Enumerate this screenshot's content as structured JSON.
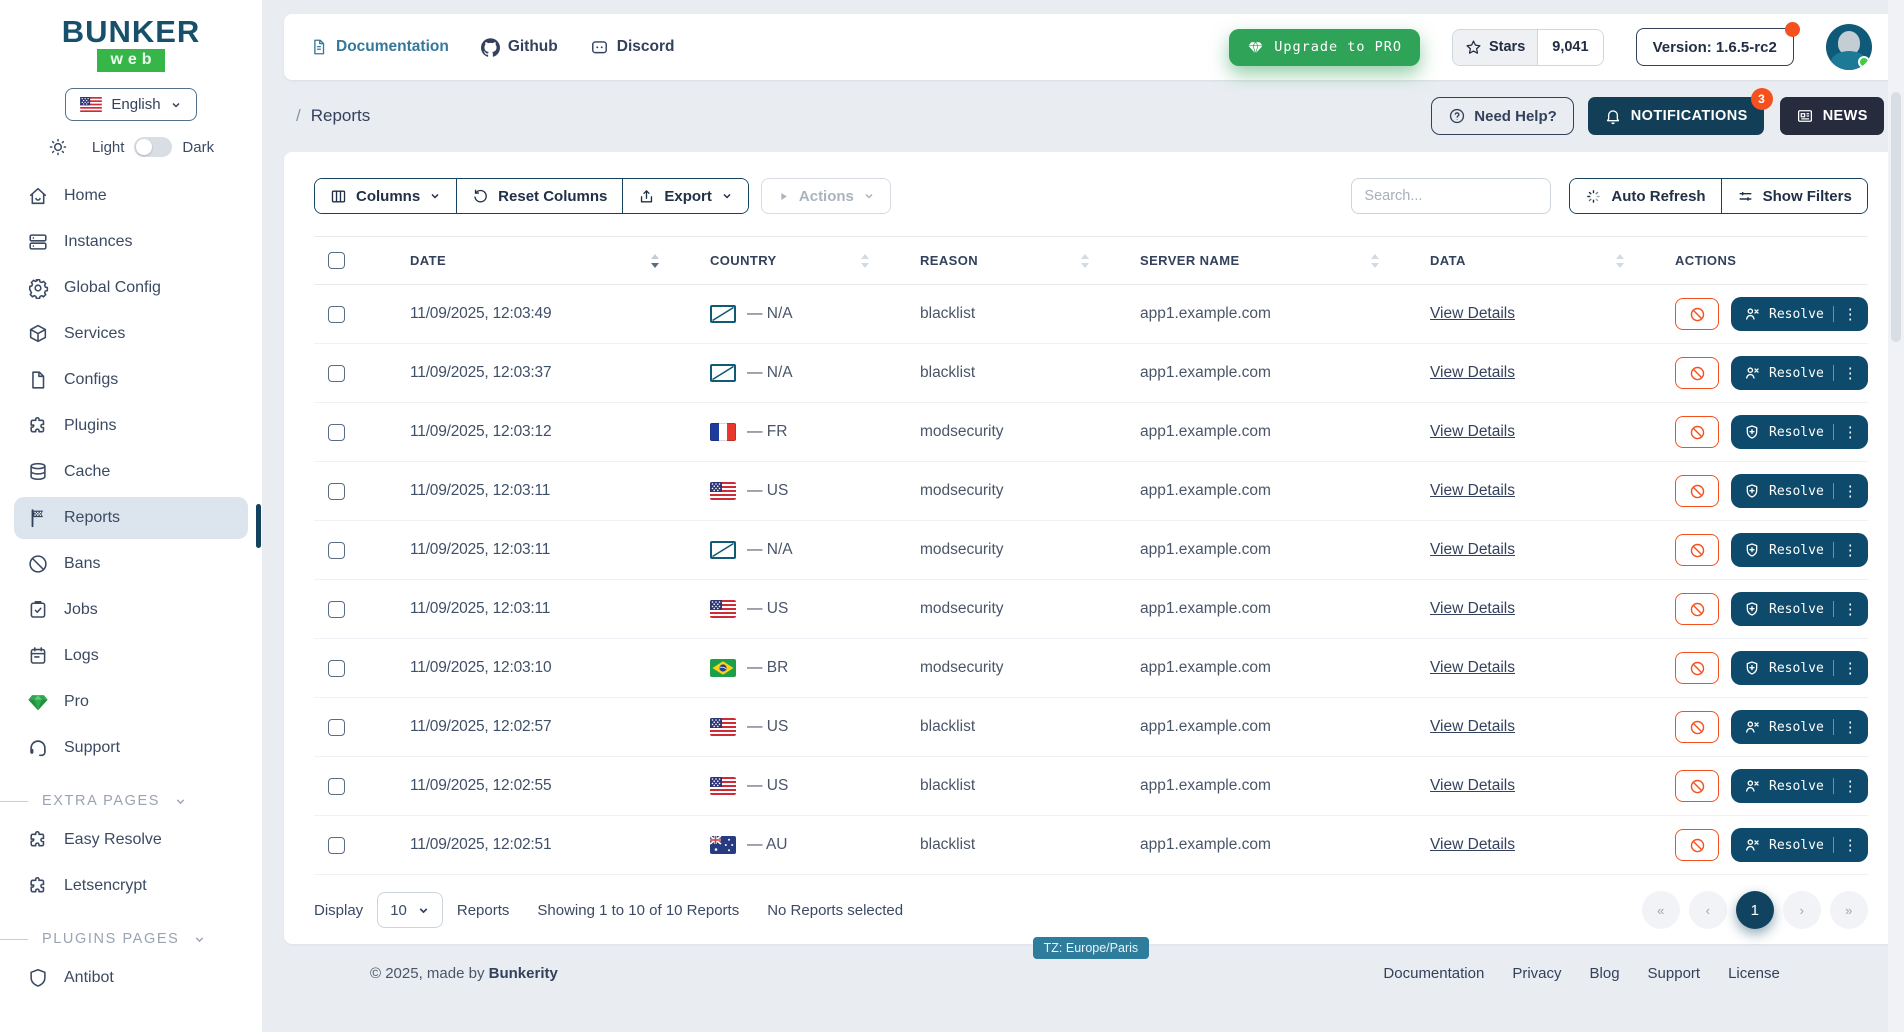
{
  "brand": {
    "name": "BUNKER",
    "sub": "web"
  },
  "sidebar": {
    "language": "English",
    "theme": {
      "light": "Light",
      "dark": "Dark"
    },
    "menu": [
      {
        "label": "Home"
      },
      {
        "label": "Instances"
      },
      {
        "label": "Global Config"
      },
      {
        "label": "Services"
      },
      {
        "label": "Configs"
      },
      {
        "label": "Plugins"
      },
      {
        "label": "Cache"
      },
      {
        "label": "Reports"
      },
      {
        "label": "Bans"
      },
      {
        "label": "Jobs"
      },
      {
        "label": "Logs"
      },
      {
        "label": "Pro"
      },
      {
        "label": "Support"
      }
    ],
    "sections": [
      {
        "title": "EXTRA PAGES",
        "items": [
          {
            "label": "Easy Resolve"
          },
          {
            "label": "Letsencrypt"
          }
        ]
      },
      {
        "title": "PLUGINS PAGES",
        "items": [
          {
            "label": "Antibot"
          }
        ]
      }
    ]
  },
  "topbar": {
    "documentation": "Documentation",
    "github": "Github",
    "discord": "Discord",
    "upgrade": "Upgrade to PRO",
    "stars_label": "Stars",
    "stars_count": "9,041",
    "version": "Version: 1.6.5-rc2"
  },
  "pageheader": {
    "sep": "/",
    "title": "Reports",
    "need_help": "Need Help?",
    "notifications": "NOTIFICATIONS",
    "notifications_badge": "3",
    "news": "NEWS"
  },
  "toolbar": {
    "columns": "Columns",
    "reset": "Reset Columns",
    "export": "Export",
    "actions": "Actions",
    "search_placeholder": "Search...",
    "auto_refresh": "Auto Refresh",
    "show_filters": "Show Filters"
  },
  "table": {
    "columns": {
      "date": "DATE",
      "country": "COUNTRY",
      "reason": "REASON",
      "server": "SERVER NAME",
      "data": "DATA",
      "actions": "ACTIONS"
    },
    "view_details": "View Details",
    "resolve": "Resolve",
    "rows": [
      {
        "date": "11/09/2025, 12:03:49",
        "country": "— N/A",
        "flag": "na",
        "reason": "blacklist",
        "server": "app1.example.com"
      },
      {
        "date": "11/09/2025, 12:03:37",
        "country": "— N/A",
        "flag": "na",
        "reason": "blacklist",
        "server": "app1.example.com"
      },
      {
        "date": "11/09/2025, 12:03:12",
        "country": "— FR",
        "flag": "fr",
        "reason": "modsecurity",
        "server": "app1.example.com"
      },
      {
        "date": "11/09/2025, 12:03:11",
        "country": "— US",
        "flag": "us",
        "reason": "modsecurity",
        "server": "app1.example.com"
      },
      {
        "date": "11/09/2025, 12:03:11",
        "country": "— N/A",
        "flag": "na",
        "reason": "modsecurity",
        "server": "app1.example.com"
      },
      {
        "date": "11/09/2025, 12:03:11",
        "country": "— US",
        "flag": "us",
        "reason": "modsecurity",
        "server": "app1.example.com"
      },
      {
        "date": "11/09/2025, 12:03:10",
        "country": "— BR",
        "flag": "br",
        "reason": "modsecurity",
        "server": "app1.example.com"
      },
      {
        "date": "11/09/2025, 12:02:57",
        "country": "— US",
        "flag": "us",
        "reason": "blacklist",
        "server": "app1.example.com"
      },
      {
        "date": "11/09/2025, 12:02:55",
        "country": "— US",
        "flag": "us",
        "reason": "blacklist",
        "server": "app1.example.com"
      },
      {
        "date": "11/09/2025, 12:02:51",
        "country": "— AU",
        "flag": "au",
        "reason": "blacklist",
        "server": "app1.example.com"
      }
    ]
  },
  "tablefooter": {
    "display": "Display",
    "per_page": "10",
    "unit": "Reports",
    "showing": "Showing 1 to 10 of 10 Reports",
    "selected": "No Reports selected",
    "tz": "TZ: Europe/Paris",
    "pagination": {
      "first": "«",
      "prev": "‹",
      "page": "1",
      "next": "›",
      "last": "»"
    }
  },
  "footer": {
    "copyright": "© 2025, made by",
    "brand": "Bunkerity",
    "links": [
      "Documentation",
      "Privacy",
      "Blog",
      "Support",
      "License"
    ]
  },
  "colors": {
    "accent_teal": "#0d4a6b",
    "green": "#2fa357",
    "alert": "#f4511e",
    "navy": "#33415c"
  }
}
